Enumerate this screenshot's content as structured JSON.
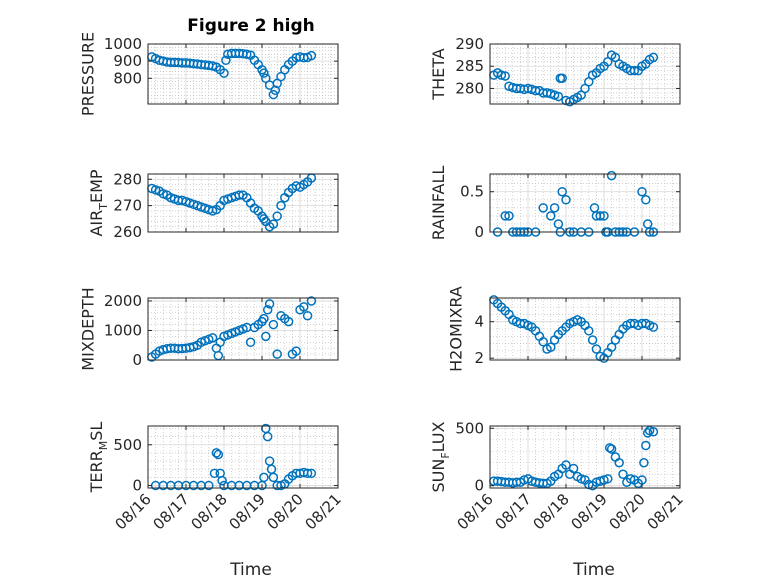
{
  "figure": {
    "title": "Figure 2 high",
    "xlabel": "Time"
  },
  "colors": {
    "marker": "#0072bd",
    "axis": "#262626",
    "grid": "#b5b5b5",
    "background": "#ffffff"
  },
  "chart_data": [
    {
      "type": "scatter",
      "id": "pressure",
      "ylabel": "PRESSURE",
      "ylim": [
        650,
        1000
      ],
      "yticks": [
        800,
        900,
        1000
      ],
      "yticklabels": [
        "800",
        "900",
        "1000"
      ],
      "xlim": [
        0,
        5
      ],
      "xticks": [
        0,
        1,
        2,
        3,
        4,
        5
      ],
      "show_xticklabels": false,
      "x": [
        0.1,
        0.2,
        0.3,
        0.4,
        0.5,
        0.6,
        0.7,
        0.8,
        0.9,
        1.0,
        1.1,
        1.2,
        1.3,
        1.4,
        1.5,
        1.6,
        1.7,
        1.8,
        1.9,
        2.0,
        2.05,
        2.1,
        2.2,
        2.3,
        2.4,
        2.5,
        2.6,
        2.7,
        2.8,
        2.9,
        3.0,
        3.05,
        3.1,
        3.2,
        3.3,
        3.35,
        3.4,
        3.5,
        3.6,
        3.7,
        3.8,
        3.9,
        4.0,
        4.1,
        4.2,
        4.3
      ],
      "y": [
        925,
        915,
        905,
        900,
        895,
        893,
        893,
        892,
        890,
        890,
        888,
        885,
        883,
        880,
        878,
        875,
        872,
        865,
        850,
        830,
        905,
        940,
        945,
        945,
        945,
        943,
        940,
        935,
        905,
        880,
        850,
        830,
        800,
        760,
        705,
        730,
        770,
        810,
        850,
        880,
        900,
        920,
        925,
        920,
        922,
        932
      ]
    },
    {
      "type": "scatter",
      "id": "theta",
      "ylabel": "THETA",
      "ylim": [
        276.5,
        290
      ],
      "yticks": [
        280,
        285,
        290
      ],
      "yticklabels": [
        "280",
        "285",
        "290"
      ],
      "xlim": [
        0,
        5
      ],
      "xticks": [
        0,
        1,
        2,
        3,
        4,
        5
      ],
      "show_xticklabels": false,
      "x": [
        0.1,
        0.2,
        0.3,
        0.4,
        0.5,
        0.6,
        0.7,
        0.8,
        0.9,
        1.0,
        1.1,
        1.2,
        1.3,
        1.4,
        1.5,
        1.6,
        1.7,
        1.8,
        1.85,
        1.9,
        2.0,
        2.1,
        2.2,
        2.3,
        2.4,
        2.5,
        2.6,
        2.7,
        2.8,
        2.9,
        3.0,
        3.1,
        3.2,
        3.3,
        3.4,
        3.5,
        3.6,
        3.7,
        3.8,
        3.9,
        4.0,
        4.1,
        4.2,
        4.3
      ],
      "y": [
        283,
        283.5,
        283,
        282.8,
        280.5,
        280.2,
        280,
        280,
        279.8,
        280,
        279.8,
        279.5,
        279.5,
        279,
        279,
        278.8,
        278.5,
        278.2,
        282.3,
        282.3,
        277.3,
        277,
        277.5,
        278,
        278.5,
        280,
        281.5,
        283,
        283.5,
        284.5,
        285,
        286,
        287.5,
        287,
        285.5,
        285,
        284.5,
        284,
        284,
        284,
        285,
        285.5,
        286.5,
        287
      ]
    },
    {
      "type": "scatter",
      "id": "air_temp",
      "ylabel": "AIR",
      "ylabel_sub": "T",
      "ylabel_rest": "EMP",
      "ylim": [
        260,
        282
      ],
      "yticks": [
        260,
        270,
        280
      ],
      "yticklabels": [
        "260",
        "270",
        "280"
      ],
      "xlim": [
        0,
        5
      ],
      "xticks": [
        0,
        1,
        2,
        3,
        4,
        5
      ],
      "show_xticklabels": false,
      "x": [
        0.1,
        0.2,
        0.3,
        0.4,
        0.5,
        0.6,
        0.7,
        0.8,
        0.9,
        1.0,
        1.1,
        1.2,
        1.3,
        1.4,
        1.5,
        1.6,
        1.7,
        1.8,
        1.9,
        2.0,
        2.1,
        2.2,
        2.3,
        2.4,
        2.5,
        2.6,
        2.7,
        2.8,
        2.9,
        3.0,
        3.05,
        3.1,
        3.2,
        3.3,
        3.4,
        3.5,
        3.6,
        3.7,
        3.8,
        3.9,
        4.0,
        4.1,
        4.2,
        4.3
      ],
      "y": [
        276.5,
        276,
        275.5,
        274.5,
        274,
        273,
        272.5,
        272,
        272,
        271.5,
        271,
        270.5,
        270,
        269.5,
        269,
        268.5,
        268,
        268.5,
        270,
        272,
        272.5,
        273,
        273.5,
        274,
        274,
        273,
        271,
        269,
        268,
        266,
        265,
        264,
        262,
        263,
        266,
        270,
        273,
        275,
        276.5,
        277.5,
        277,
        278,
        279,
        280.5
      ]
    },
    {
      "type": "scatter",
      "id": "rainfall",
      "ylabel": "RAINFALL",
      "ylim": [
        0,
        0.72
      ],
      "yticks": [
        0,
        0.5
      ],
      "yticklabels": [
        "0",
        "0.5"
      ],
      "xlim": [
        0,
        5
      ],
      "xticks": [
        0,
        1,
        2,
        3,
        4,
        5
      ],
      "show_xticklabels": false,
      "x": [
        0.2,
        0.4,
        0.5,
        0.6,
        0.7,
        0.8,
        0.9,
        1.0,
        1.2,
        1.4,
        1.6,
        1.7,
        1.8,
        1.85,
        1.9,
        2.0,
        2.1,
        2.2,
        2.4,
        2.6,
        2.75,
        2.8,
        2.9,
        3.0,
        3.05,
        3.1,
        3.2,
        3.3,
        3.4,
        3.5,
        3.6,
        3.8,
        4.0,
        4.1,
        4.15,
        4.2,
        4.3
      ],
      "y": [
        0,
        0.2,
        0.2,
        0,
        0,
        0,
        0,
        0,
        0,
        0.3,
        0.2,
        0.3,
        0.1,
        0,
        0.5,
        0.4,
        0,
        0,
        0,
        0,
        0.3,
        0.2,
        0.2,
        0.2,
        0,
        0,
        0.7,
        0,
        0,
        0,
        0,
        0,
        0.5,
        0.4,
        0.1,
        0,
        0
      ]
    },
    {
      "type": "scatter",
      "id": "mixdepth",
      "ylabel": "MIXDEPTH",
      "ylim": [
        0,
        2100
      ],
      "yticks": [
        0,
        1000,
        2000
      ],
      "yticklabels": [
        "0",
        "1000",
        "2000"
      ],
      "xlim": [
        0,
        5
      ],
      "xticks": [
        0,
        1,
        2,
        3,
        4,
        5
      ],
      "show_xticklabels": false,
      "x": [
        0.1,
        0.2,
        0.3,
        0.4,
        0.5,
        0.6,
        0.7,
        0.8,
        0.9,
        1.0,
        1.1,
        1.2,
        1.3,
        1.4,
        1.5,
        1.6,
        1.7,
        1.8,
        1.85,
        1.9,
        2.0,
        2.1,
        2.2,
        2.3,
        2.4,
        2.5,
        2.6,
        2.7,
        2.8,
        2.9,
        3.0,
        3.05,
        3.1,
        3.15,
        3.2,
        3.3,
        3.4,
        3.5,
        3.6,
        3.7,
        3.8,
        3.9,
        4.0,
        4.1,
        4.2,
        4.3
      ],
      "y": [
        100,
        200,
        300,
        350,
        380,
        400,
        400,
        380,
        390,
        400,
        420,
        450,
        500,
        600,
        650,
        700,
        750,
        400,
        150,
        600,
        800,
        850,
        900,
        950,
        1000,
        1050,
        1100,
        600,
        1100,
        1200,
        1300,
        1400,
        800,
        1700,
        1900,
        1200,
        200,
        1500,
        1400,
        1300,
        200,
        300,
        1700,
        1800,
        1500,
        2000
      ]
    },
    {
      "type": "scatter",
      "id": "h2omixra",
      "ylabel": "H2OMIXRA",
      "ylim": [
        1.9,
        5.3
      ],
      "yticks": [
        2,
        4
      ],
      "yticklabels": [
        "2",
        "4"
      ],
      "xlim": [
        0,
        5
      ],
      "xticks": [
        0,
        1,
        2,
        3,
        4,
        5
      ],
      "show_xticklabels": false,
      "x": [
        0.1,
        0.2,
        0.3,
        0.4,
        0.5,
        0.6,
        0.7,
        0.8,
        0.9,
        1.0,
        1.1,
        1.2,
        1.3,
        1.4,
        1.5,
        1.6,
        1.7,
        1.8,
        1.9,
        2.0,
        2.1,
        2.2,
        2.3,
        2.4,
        2.5,
        2.6,
        2.7,
        2.8,
        2.9,
        3.0,
        3.1,
        3.2,
        3.3,
        3.4,
        3.5,
        3.6,
        3.7,
        3.8,
        3.9,
        4.0,
        4.1,
        4.2,
        4.3
      ],
      "y": [
        5.2,
        5,
        4.8,
        4.6,
        4.4,
        4.1,
        4,
        3.9,
        3.9,
        3.8,
        3.7,
        3.5,
        3.2,
        2.9,
        2.5,
        2.6,
        3,
        3.3,
        3.5,
        3.7,
        3.9,
        4,
        4.1,
        4,
        3.8,
        3.5,
        3.0,
        2.5,
        2.1,
        2.0,
        2.3,
        2.6,
        3.0,
        3.3,
        3.6,
        3.8,
        3.9,
        3.9,
        3.8,
        3.9,
        3.9,
        3.8,
        3.7
      ]
    },
    {
      "type": "scatter",
      "id": "terr_msl",
      "ylabel": "TERR",
      "ylabel_sub": "M",
      "ylabel_rest": "SL",
      "ylim": [
        -30,
        730
      ],
      "yticks": [
        0,
        500
      ],
      "yticklabels": [
        "0",
        "500"
      ],
      "xlim": [
        0,
        5
      ],
      "xticks": [
        0,
        1,
        2,
        3,
        4,
        5
      ],
      "xticklabels": [
        "08/16",
        "08/17",
        "08/18",
        "08/19",
        "08/20",
        "08/21"
      ],
      "show_xticklabels": true,
      "x": [
        0.2,
        0.4,
        0.6,
        0.8,
        1.0,
        1.2,
        1.4,
        1.6,
        1.75,
        1.8,
        1.85,
        1.9,
        1.95,
        2.0,
        2.2,
        2.4,
        2.6,
        2.8,
        3.0,
        3.05,
        3.1,
        3.15,
        3.2,
        3.25,
        3.3,
        3.4,
        3.5,
        3.6,
        3.7,
        3.8,
        3.9,
        4.0,
        4.1,
        4.2,
        4.3
      ],
      "y": [
        0,
        0,
        0,
        0,
        0,
        0,
        0,
        0,
        150,
        400,
        380,
        150,
        60,
        0,
        0,
        0,
        0,
        0,
        0,
        100,
        700,
        600,
        300,
        200,
        100,
        0,
        0,
        20,
        80,
        120,
        150,
        150,
        160,
        150,
        150
      ]
    },
    {
      "type": "scatter",
      "id": "sun_flux",
      "ylabel": "SUN",
      "ylabel_sub": "F",
      "ylabel_rest": "LUX",
      "ylim": [
        -20,
        520
      ],
      "yticks": [
        0,
        500
      ],
      "yticklabels": [
        "0",
        "500"
      ],
      "xlim": [
        0,
        5
      ],
      "xticks": [
        0,
        1,
        2,
        3,
        4,
        5
      ],
      "xticklabels": [
        "08/16",
        "08/17",
        "08/18",
        "08/19",
        "08/20",
        "08/21"
      ],
      "show_xticklabels": true,
      "x": [
        0.1,
        0.2,
        0.3,
        0.4,
        0.5,
        0.6,
        0.7,
        0.8,
        0.9,
        1.0,
        1.1,
        1.2,
        1.3,
        1.4,
        1.5,
        1.6,
        1.7,
        1.8,
        1.9,
        2.0,
        2.1,
        2.2,
        2.3,
        2.4,
        2.5,
        2.6,
        2.7,
        2.8,
        2.9,
        3.0,
        3.1,
        3.15,
        3.2,
        3.3,
        3.4,
        3.5,
        3.6,
        3.7,
        3.8,
        3.9,
        4.0,
        4.05,
        4.1,
        4.15,
        4.2,
        4.3
      ],
      "y": [
        40,
        40,
        35,
        30,
        30,
        25,
        30,
        30,
        50,
        60,
        40,
        30,
        25,
        20,
        20,
        40,
        80,
        100,
        150,
        180,
        100,
        150,
        80,
        60,
        50,
        10,
        0,
        30,
        40,
        50,
        60,
        330,
        320,
        250,
        200,
        100,
        30,
        60,
        50,
        20,
        50,
        200,
        350,
        460,
        480,
        470
      ]
    }
  ]
}
